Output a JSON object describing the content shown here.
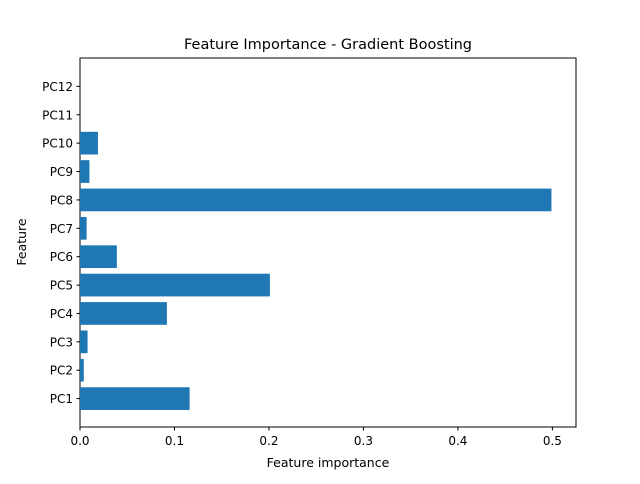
{
  "chart_data": {
    "type": "bar",
    "orientation": "horizontal",
    "title": "Feature Importance - Gradient Boosting",
    "xlabel": "Feature importance",
    "ylabel": "Feature",
    "categories": [
      "PC1",
      "PC2",
      "PC3",
      "PC4",
      "PC5",
      "PC6",
      "PC7",
      "PC8",
      "PC9",
      "PC10",
      "PC11",
      "PC12"
    ],
    "values": [
      0.116,
      0.004,
      0.008,
      0.092,
      0.201,
      0.039,
      0.007,
      0.499,
      0.01,
      0.019,
      0.0,
      0.0
    ],
    "xlim": [
      0,
      0.525
    ],
    "xticks": [
      0.0,
      0.1,
      0.2,
      0.3,
      0.4,
      0.5
    ],
    "xtick_labels": [
      "0.0",
      "0.1",
      "0.2",
      "0.3",
      "0.4",
      "0.5"
    ],
    "bar_color": "#1f77b4",
    "grid": false,
    "legend": "none"
  }
}
